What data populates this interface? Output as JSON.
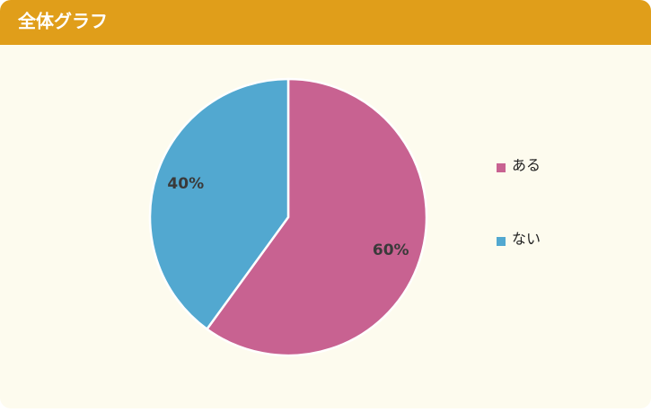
{
  "chart_data": {
    "type": "pie",
    "title": "全体グラフ",
    "categories": [
      "ある",
      "ない"
    ],
    "values": [
      60,
      40
    ],
    "value_labels": [
      "60%",
      "40%"
    ],
    "colors": [
      "#c86291",
      "#52a8d0"
    ]
  }
}
